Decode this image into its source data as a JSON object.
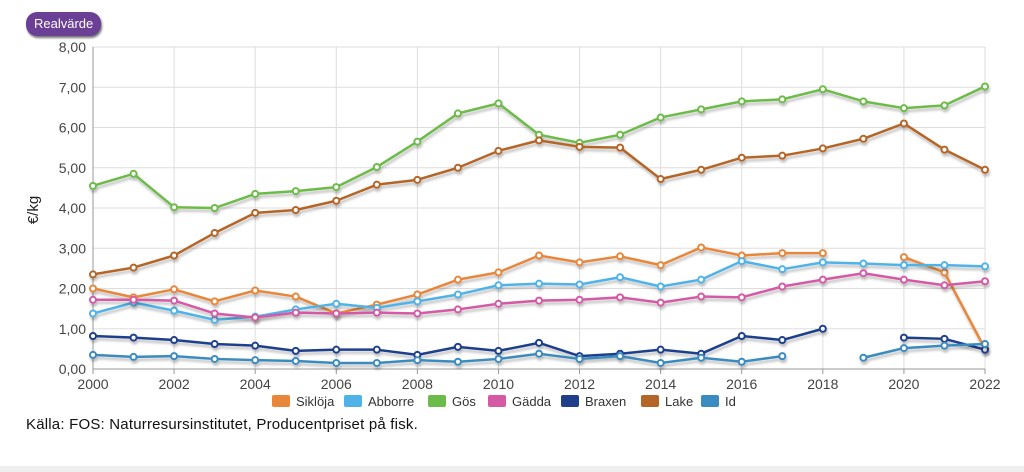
{
  "badge_label": "Realvärde",
  "source_text": "Källa: FOS: Naturresursinstitutet, Producentpriset på fisk.",
  "chart_data": {
    "type": "line",
    "ylabel": "€/kg",
    "xlabel": "",
    "title": "",
    "xlim": [
      2000,
      2022
    ],
    "ylim": [
      0,
      8
    ],
    "x_ticks": [
      "2000",
      "2002",
      "2004",
      "2006",
      "2008",
      "2010",
      "2012",
      "2014",
      "2016",
      "2018",
      "2020",
      "2022"
    ],
    "y_ticks": [
      "0,00",
      "1,00",
      "2,00",
      "3,00",
      "4,00",
      "5,00",
      "6,00",
      "7,00",
      "8,00"
    ],
    "grid": true,
    "legend_position": "bottom",
    "x": [
      2000,
      2001,
      2002,
      2003,
      2004,
      2005,
      2006,
      2007,
      2008,
      2009,
      2010,
      2011,
      2012,
      2013,
      2014,
      2015,
      2016,
      2017,
      2018,
      2019,
      2020,
      2021,
      2022
    ],
    "series": [
      {
        "name": "Siklöja",
        "color": "#e8873a",
        "values": [
          2.0,
          1.78,
          1.98,
          1.68,
          1.95,
          1.8,
          1.38,
          1.6,
          1.85,
          2.22,
          2.4,
          2.82,
          2.65,
          2.8,
          2.58,
          3.02,
          2.82,
          2.88,
          2.88,
          null,
          2.78,
          2.4,
          0.5
        ]
      },
      {
        "name": "Abborre",
        "color": "#4fb3e8",
        "values": [
          1.38,
          1.65,
          1.45,
          1.22,
          1.3,
          1.48,
          1.62,
          1.52,
          1.68,
          1.85,
          2.08,
          2.12,
          2.1,
          2.28,
          2.05,
          2.22,
          2.68,
          2.48,
          2.65,
          2.62,
          2.58,
          2.58,
          2.55
        ]
      },
      {
        "name": "Gös",
        "color": "#6dbb4a",
        "values": [
          4.55,
          4.85,
          4.02,
          4.0,
          4.35,
          4.42,
          4.52,
          5.02,
          5.65,
          6.35,
          6.6,
          5.82,
          5.62,
          5.82,
          6.25,
          6.45,
          6.65,
          6.7,
          6.95,
          6.65,
          6.48,
          6.55,
          7.02
        ]
      },
      {
        "name": "Gädda",
        "color": "#d45aa5",
        "values": [
          1.72,
          1.72,
          1.7,
          1.38,
          1.28,
          1.4,
          1.38,
          1.4,
          1.38,
          1.48,
          1.62,
          1.7,
          1.72,
          1.78,
          1.65,
          1.8,
          1.78,
          2.05,
          2.22,
          2.38,
          2.22,
          2.08,
          2.18
        ]
      },
      {
        "name": "Braxen",
        "color": "#1f3f8c",
        "values": [
          0.82,
          0.78,
          0.72,
          0.62,
          0.58,
          0.45,
          0.48,
          0.48,
          0.35,
          0.55,
          0.45,
          0.65,
          0.32,
          0.38,
          0.48,
          0.38,
          0.82,
          0.72,
          1.0,
          null,
          0.78,
          0.75,
          0.48
        ]
      },
      {
        "name": "Lake",
        "color": "#b56527",
        "values": [
          2.35,
          2.52,
          2.82,
          3.38,
          3.88,
          3.95,
          4.18,
          4.58,
          4.7,
          5.0,
          5.42,
          5.68,
          5.52,
          5.5,
          4.72,
          4.95,
          5.25,
          5.3,
          5.48,
          5.72,
          6.1,
          5.45,
          4.95
        ]
      },
      {
        "name": "Id",
        "color": "#3a8bbf",
        "values": [
          0.35,
          0.3,
          0.32,
          0.25,
          0.22,
          0.2,
          0.15,
          0.15,
          0.22,
          0.18,
          0.25,
          0.38,
          0.25,
          0.32,
          0.15,
          0.28,
          0.18,
          0.32,
          null,
          0.28,
          0.52,
          0.58,
          0.62
        ]
      }
    ]
  }
}
